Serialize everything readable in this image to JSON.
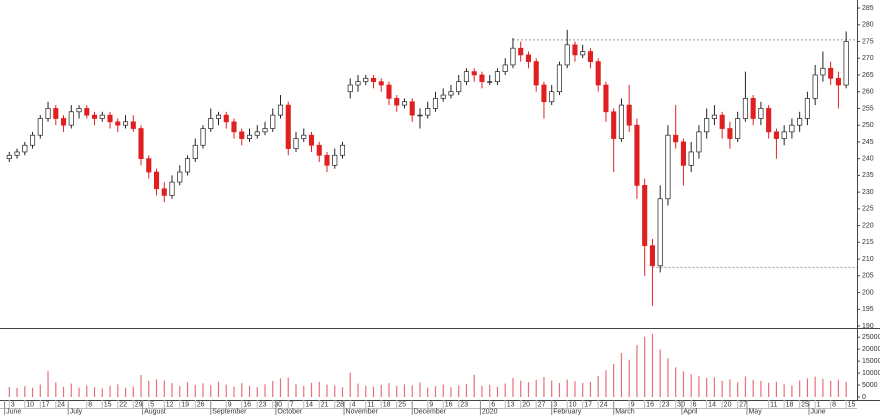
{
  "chart_data": {
    "type": "candlestick",
    "up_color": "#ffffff",
    "down_color": "#e02020",
    "outline_color": "#222222",
    "ylim": [
      189.4,
      287.4
    ],
    "yticks": [
      190,
      195,
      200,
      205,
      210,
      215,
      220,
      225,
      230,
      235,
      240,
      245,
      250,
      255,
      260,
      265,
      270,
      275,
      280,
      285
    ],
    "xlim": [
      -1.2,
      109.4
    ],
    "xticks": [
      {
        "value": 0,
        "label": "3"
      },
      {
        "value": 2,
        "label": "10"
      },
      {
        "value": 4,
        "label": "17"
      },
      {
        "value": 6,
        "label": "24"
      },
      {
        "value": 10,
        "label": "8"
      },
      {
        "value": 12,
        "label": "15"
      },
      {
        "value": 14,
        "label": "22"
      },
      {
        "value": 16,
        "label": "29"
      },
      {
        "value": 18,
        "label": "5"
      },
      {
        "value": 20,
        "label": "12"
      },
      {
        "value": 22,
        "label": "19"
      },
      {
        "value": 24,
        "label": "26"
      },
      {
        "value": 28,
        "label": "9"
      },
      {
        "value": 30,
        "label": "16"
      },
      {
        "value": 32,
        "label": "23"
      },
      {
        "value": 34,
        "label": "30"
      },
      {
        "value": 36,
        "label": "7"
      },
      {
        "value": 38,
        "label": "14"
      },
      {
        "value": 40,
        "label": "21"
      },
      {
        "value": 42,
        "label": "28"
      },
      {
        "value": 44,
        "label": "4"
      },
      {
        "value": 46,
        "label": "11"
      },
      {
        "value": 48,
        "label": "18"
      },
      {
        "value": 50,
        "label": "25"
      },
      {
        "value": 54,
        "label": "9"
      },
      {
        "value": 56,
        "label": "16"
      },
      {
        "value": 58,
        "label": "23"
      },
      {
        "value": 62,
        "label": "6"
      },
      {
        "value": 64,
        "label": "13"
      },
      {
        "value": 66,
        "label": "20"
      },
      {
        "value": 68,
        "label": "27"
      },
      {
        "value": 70,
        "label": "3"
      },
      {
        "value": 72,
        "label": "10"
      },
      {
        "value": 74,
        "label": "17"
      },
      {
        "value": 76,
        "label": "24"
      },
      {
        "value": 80,
        "label": "9"
      },
      {
        "value": 82,
        "label": "16"
      },
      {
        "value": 84,
        "label": "23"
      },
      {
        "value": 86,
        "label": "30"
      },
      {
        "value": 88,
        "label": "6"
      },
      {
        "value": 90,
        "label": "14"
      },
      {
        "value": 92,
        "label": "20"
      },
      {
        "value": 94,
        "label": "27"
      },
      {
        "value": 98,
        "label": "11"
      },
      {
        "value": 100,
        "label": "18"
      },
      {
        "value": 102,
        "label": "25"
      },
      {
        "value": 104,
        "label": "1"
      },
      {
        "value": 106,
        "label": "8"
      },
      {
        "value": 108,
        "label": "15"
      }
    ],
    "month_labels": [
      {
        "value": -0.6,
        "label": "June"
      },
      {
        "value": 7.6,
        "label": "July"
      },
      {
        "value": 17.2,
        "label": "August"
      },
      {
        "value": 26,
        "label": "September"
      },
      {
        "value": 34.4,
        "label": "October"
      },
      {
        "value": 43.2,
        "label": "November"
      },
      {
        "value": 52,
        "label": "December"
      },
      {
        "value": 60.8,
        "label": "2020"
      },
      {
        "value": 70,
        "label": "February"
      },
      {
        "value": 78,
        "label": "March"
      },
      {
        "value": 86.8,
        "label": "April"
      },
      {
        "value": 95.2,
        "label": "May"
      },
      {
        "value": 103.2,
        "label": "June"
      }
    ],
    "reference_lines": [
      {
        "value": 275.5,
        "start": 65
      },
      {
        "value": 207.5,
        "start": 83
      }
    ],
    "ohlc": [
      [
        240,
        242,
        239,
        241
      ],
      [
        241,
        243,
        240,
        242
      ],
      [
        242,
        245,
        241,
        244
      ],
      [
        244,
        248,
        243,
        247
      ],
      [
        247,
        253,
        246,
        252
      ],
      [
        252,
        257,
        251,
        255
      ],
      [
        255,
        256,
        250,
        252
      ],
      [
        252,
        253,
        248,
        250
      ],
      [
        250,
        256,
        249,
        254
      ],
      [
        254,
        256,
        252,
        255
      ],
      [
        255,
        256,
        252,
        253
      ],
      [
        253,
        254,
        250,
        252
      ],
      [
        252,
        254,
        251,
        253
      ],
      [
        253,
        254,
        249,
        251
      ],
      [
        251,
        252,
        248,
        250
      ],
      [
        250,
        253,
        249,
        251
      ],
      [
        251,
        253,
        248,
        249
      ],
      [
        249,
        250,
        238,
        240
      ],
      [
        240,
        241,
        234,
        236
      ],
      [
        236,
        237,
        229,
        231
      ],
      [
        231,
        233,
        227,
        229
      ],
      [
        229,
        235,
        228,
        233
      ],
      [
        233,
        238,
        232,
        236
      ],
      [
        236,
        241,
        235,
        240
      ],
      [
        240,
        246,
        239,
        244
      ],
      [
        244,
        250,
        243,
        249
      ],
      [
        249,
        255,
        248,
        252
      ],
      [
        252,
        254,
        250,
        253
      ],
      [
        253,
        254,
        249,
        251
      ],
      [
        251,
        252,
        246,
        248
      ],
      [
        248,
        249,
        244,
        246
      ],
      [
        246,
        249,
        245,
        247
      ],
      [
        247,
        250,
        246,
        248
      ],
      [
        248,
        251,
        247,
        249
      ],
      [
        249,
        255,
        248,
        253
      ],
      [
        253,
        259,
        252,
        256
      ],
      [
        256,
        257,
        241,
        243
      ],
      [
        243,
        248,
        242,
        246
      ],
      [
        246,
        249,
        245,
        247
      ],
      [
        247,
        248,
        242,
        244
      ],
      [
        244,
        245,
        239,
        241
      ],
      [
        241,
        242,
        236,
        238
      ],
      [
        238,
        243,
        237,
        241
      ],
      [
        241,
        245,
        240,
        244
      ],
      [
        260,
        264,
        258,
        262
      ],
      [
        262,
        265,
        260,
        263
      ],
      [
        263,
        265,
        262,
        264
      ],
      [
        264,
        265,
        261,
        263
      ],
      [
        263,
        264,
        260,
        262
      ],
      [
        262,
        263,
        256,
        258
      ],
      [
        258,
        259,
        254,
        256
      ],
      [
        256,
        258,
        255,
        257
      ],
      [
        257,
        258,
        251,
        253
      ],
      [
        253,
        255,
        249,
        253
      ],
      [
        253,
        257,
        252,
        255
      ],
      [
        255,
        260,
        254,
        258
      ],
      [
        258,
        261,
        257,
        259
      ],
      [
        259,
        262,
        258,
        260
      ],
      [
        260,
        265,
        259,
        263
      ],
      [
        263,
        267,
        262,
        266
      ],
      [
        266,
        267,
        263,
        265
      ],
      [
        265,
        266,
        261,
        263
      ],
      [
        263,
        265,
        262,
        263
      ],
      [
        263,
        267,
        262,
        266
      ],
      [
        266,
        270,
        265,
        268
      ],
      [
        268,
        276,
        267,
        273
      ],
      [
        273,
        275,
        269,
        271
      ],
      [
        271,
        272,
        267,
        269
      ],
      [
        269,
        270,
        260,
        262
      ],
      [
        262,
        263,
        252,
        257
      ],
      [
        257,
        262,
        256,
        260
      ],
      [
        260,
        269,
        259,
        268
      ],
      [
        268,
        278.5,
        267,
        274
      ],
      [
        274,
        275,
        269,
        271
      ],
      [
        271,
        274,
        270,
        272
      ],
      [
        272,
        273,
        267,
        269
      ],
      [
        269,
        270,
        260,
        262
      ],
      [
        262,
        263,
        251,
        254
      ],
      [
        254,
        255,
        236,
        246
      ],
      [
        246,
        258,
        245,
        256
      ],
      [
        256,
        262,
        248,
        250
      ],
      [
        250,
        252,
        228,
        232
      ],
      [
        232,
        234,
        205,
        214
      ],
      [
        214,
        216,
        196,
        208
      ],
      [
        208,
        232,
        206,
        228
      ],
      [
        228,
        250,
        226,
        247
      ],
      [
        247,
        256,
        243,
        245
      ],
      [
        245,
        246,
        232,
        238
      ],
      [
        238,
        245,
        236,
        242
      ],
      [
        242,
        250,
        240,
        248
      ],
      [
        248,
        255,
        246,
        252
      ],
      [
        252,
        256,
        250,
        253
      ],
      [
        253,
        254,
        246,
        249
      ],
      [
        249,
        251,
        243,
        246
      ],
      [
        246,
        254,
        245,
        252
      ],
      [
        252,
        266,
        251,
        258
      ],
      [
        258,
        259,
        250,
        252
      ],
      [
        252,
        257,
        250,
        255
      ],
      [
        255,
        256,
        246,
        248
      ],
      [
        248,
        249,
        240,
        246
      ],
      [
        246,
        250,
        244,
        248
      ],
      [
        248,
        252,
        246,
        250
      ],
      [
        250,
        254,
        248,
        252
      ],
      [
        252,
        260,
        250,
        258
      ],
      [
        258,
        268,
        256,
        265
      ],
      [
        265,
        272,
        263,
        267
      ],
      [
        267,
        269,
        262,
        264
      ],
      [
        264,
        266,
        255,
        262
      ],
      [
        262,
        278,
        261,
        275
      ]
    ],
    "volume": {
      "color": "#e8707a",
      "ylim": [
        0,
        28000
      ],
      "yticks": [
        0,
        5000,
        10000,
        15000,
        20000,
        25000
      ],
      "values": [
        4200,
        3800,
        4500,
        3900,
        5200,
        10800,
        6100,
        4300,
        5600,
        3900,
        4800,
        4100,
        3600,
        4700,
        5300,
        3900,
        4400,
        9200,
        6800,
        7400,
        6900,
        5800,
        4600,
        6200,
        5100,
        5700,
        4900,
        6400,
        5200,
        4300,
        5800,
        4700,
        4100,
        5300,
        6700,
        7800,
        8100,
        5400,
        4600,
        5900,
        6300,
        5200,
        4800,
        4100,
        10200,
        5600,
        4700,
        4300,
        5100,
        5800,
        4600,
        5300,
        4900,
        6100,
        3900,
        4500,
        5200,
        4100,
        4800,
        5500,
        9300,
        4700,
        5100,
        4200,
        5600,
        7900,
        6800,
        6200,
        7100,
        8400,
        6900,
        5800,
        7300,
        6600,
        5900,
        6400,
        8800,
        11200,
        13800,
        18400,
        15600,
        21700,
        25200,
        26400,
        19800,
        16200,
        12400,
        10800,
        9600,
        8700,
        7900,
        8200,
        6800,
        7400,
        6100,
        8600,
        7200,
        6700,
        5900,
        6400,
        5300,
        4800,
        6900,
        7800,
        8500,
        7600,
        6800,
        7200,
        6300
      ]
    }
  }
}
